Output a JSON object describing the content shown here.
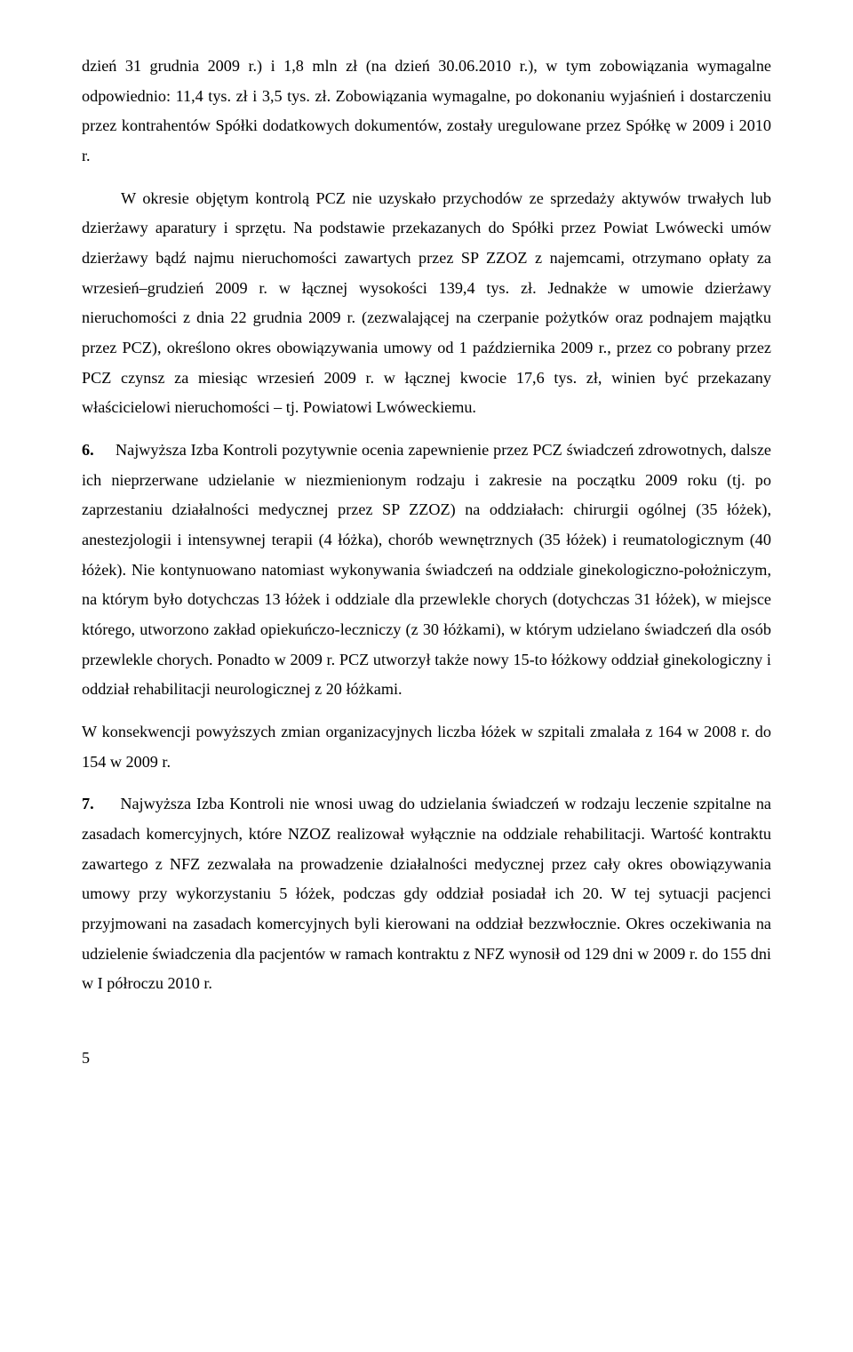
{
  "paragraphs": {
    "p1": "dzień 31 grudnia 2009 r.) i 1,8 mln zł (na dzień 30.06.2010 r.), w tym zobowiązania wymagalne odpowiednio: 11,4 tys. zł i 3,5 tys. zł. Zobowiązania wymagalne, po dokonaniu wyjaśnień i dostarczeniu przez kontrahentów Spółki dodatkowych dokumentów, zostały uregulowane przez Spółkę w 2009 i 2010 r.",
    "p2": "W okresie objętym kontrolą PCZ nie uzyskało przychodów ze sprzedaży aktywów trwałych lub dzierżawy aparatury i sprzętu. Na podstawie przekazanych do Spółki przez Powiat Lwówecki umów dzierżawy bądź najmu nieruchomości zawartych przez SP ZZOZ z najemcami, otrzymano opłaty za wrzesień–grudzień 2009 r. w łącznej wysokości 139,4 tys. zł. Jednakże w umowie dzierżawy nieruchomości z dnia 22 grudnia 2009 r. (zezwalającej na czerpanie pożytków oraz podnajem majątku przez PCZ), określono okres obowiązywania umowy od 1 października 2009 r., przez co pobrany przez PCZ czynsz za miesiąc wrzesień 2009 r. w łącznej kwocie 17,6 tys. zł, winien być przekazany właścicielowi nieruchomości – tj. Powiatowi Lwóweckiemu.",
    "p3_num": "6.",
    "p3": "Najwyższa Izba Kontroli pozytywnie ocenia zapewnienie przez PCZ świadczeń zdrowotnych, dalsze ich nieprzerwane udzielanie w niezmienionym rodzaju i zakresie na początku 2009 roku (tj. po zaprzestaniu działalności medycznej przez SP ZZOZ) na oddziałach: chirurgii ogólnej (35 łóżek), anestezjologii i intensywnej terapii (4 łóżka), chorób wewnętrznych (35 łóżek) i reumatologicznym (40 łóżek). Nie kontynuowano natomiast wykonywania świadczeń na oddziale ginekologiczno-położniczym, na którym było dotychczas 13 łóżek i oddziale dla przewlekle chorych (dotychczas 31 łóżek), w miejsce którego, utworzono zakład opiekuńczo-leczniczy (z 30 łóżkami), w którym udzielano świadczeń dla osób przewlekle chorych. Ponadto w 2009 r. PCZ utworzył także nowy 15-to łóżkowy oddział ginekologiczny i oddział rehabilitacji neurologicznej z 20 łóżkami.",
    "p4": "W konsekwencji powyższych zmian organizacyjnych liczba łóżek w szpitali zmalała z 164 w 2008 r. do 154 w 2009 r.",
    "p5_num": "7.",
    "p5": "Najwyższa Izba Kontroli nie wnosi uwag do udzielania świadczeń w rodzaju leczenie szpitalne na zasadach komercyjnych, które NZOZ realizował wyłącznie na oddziale rehabilitacji. Wartość kontraktu zawartego z NFZ zezwalała na prowadzenie działalności medycznej przez cały okres obowiązywania umowy przy wykorzystaniu 5 łóżek, podczas gdy oddział posiadał ich 20. W tej sytuacji pacjenci przyjmowani na zasadach komercyjnych byli kierowani na oddział bezzwłocznie. Okres oczekiwania na udzielenie świadczenia dla pacjentów w ramach kontraktu z NFZ wynosił od 129 dni w 2009 r. do 155 dni w I półroczu 2010 r."
  },
  "page_number": "5"
}
